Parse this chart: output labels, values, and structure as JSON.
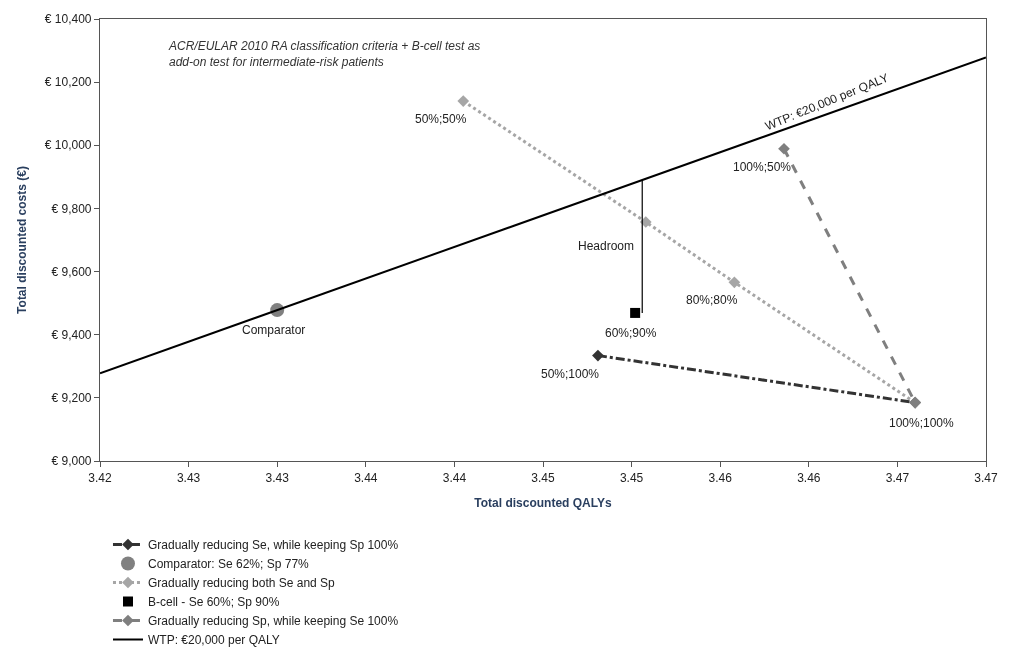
{
  "chart_data": {
    "type": "scatter",
    "xlabel": "Total discounted QALYs",
    "ylabel": "Total discounted costs (€)",
    "xlim": [
      3.42,
      3.47
    ],
    "xticks": [
      {
        "value": 3.42,
        "label": "3.42"
      },
      {
        "value": 3.425,
        "label": "3.43"
      },
      {
        "value": 3.43,
        "label": "3.43"
      },
      {
        "value": 3.435,
        "label": "3.44"
      },
      {
        "value": 3.44,
        "label": "3.44"
      },
      {
        "value": 3.445,
        "label": "3.45"
      },
      {
        "value": 3.45,
        "label": "3.45"
      },
      {
        "value": 3.455,
        "label": "3.46"
      },
      {
        "value": 3.46,
        "label": "3.46"
      },
      {
        "value": 3.465,
        "label": "3.47"
      },
      {
        "value": 3.47,
        "label": "3.47"
      }
    ],
    "ylim": [
      9000,
      10400
    ],
    "yticks": [
      {
        "value": 9000,
        "label": "€ 9,000"
      },
      {
        "value": 9200,
        "label": "€ 9,200"
      },
      {
        "value": 9400,
        "label": "€ 9,400"
      },
      {
        "value": 9600,
        "label": "€ 9,600"
      },
      {
        "value": 9800,
        "label": "€ 9,800"
      },
      {
        "value": 10000,
        "label": "€ 10,000"
      },
      {
        "value": 10200,
        "label": "€ 10,200"
      },
      {
        "value": 10400,
        "label": "€ 10,400"
      }
    ],
    "legend": "bottom",
    "series": [
      {
        "name": "Gradually reducing Se, while keeping Sp 100%",
        "type": "line",
        "color": "#333333",
        "line_style": "dashdot",
        "marker": "diamond",
        "x": [
          3.4481,
          3.466
        ],
        "values": [
          9334,
          9185
        ]
      },
      {
        "name": "Gradually reducing both Se and Sp",
        "type": "line",
        "color": "#a6a6a6",
        "line_style": "dotted",
        "marker": "diamond",
        "x": [
          3.4405,
          3.4508,
          3.4558,
          3.466
        ],
        "values": [
          10140,
          9757,
          9566,
          9185
        ]
      },
      {
        "name": "Gradually reducing Sp, while keeping Se 100%",
        "type": "line",
        "color": "#7f7f7f",
        "line_style": "dashed",
        "marker": "diamond",
        "x": [
          3.4586,
          3.466
        ],
        "values": [
          9989,
          9185
        ]
      },
      {
        "name": "Comparator: Se 62%; Sp 77%",
        "color": "#808080",
        "marker": "circle",
        "x": [
          3.43
        ],
        "values": [
          9478
        ]
      },
      {
        "name": "B-cell - Se 60%; Sp 90%",
        "color": "#000000",
        "marker": "square",
        "x": [
          3.4502
        ],
        "values": [
          9469
        ]
      },
      {
        "name": "WTP: €20,000 per QALY",
        "type": "line",
        "color": "#000000",
        "line_style": "solid",
        "marker": "none",
        "x": [
          3.42,
          3.47
        ],
        "values": [
          9278,
          10278
        ]
      }
    ],
    "annotations": [
      "ACR/EULAR 2010 RA classification criteria + B-cell test as add-on test for intermediate-risk patients",
      {
        "text": "50%;50%",
        "x": 3.4405,
        "y": 10140
      },
      {
        "text": "100%;50%",
        "x": 3.4586,
        "y": 9989
      },
      {
        "text": "80%;80%",
        "x": 3.4558,
        "y": 9566
      },
      {
        "text": "60%;90%",
        "x": 3.4502,
        "y": 9469
      },
      {
        "text": "50%;100%",
        "x": 3.4481,
        "y": 9334
      },
      {
        "text": "100%;100%",
        "x": 3.466,
        "y": 9185
      },
      {
        "text": "Comparator",
        "x": 3.43,
        "y": 9478
      },
      {
        "text": "WTP: €20,000 per QALY",
        "x": 3.461,
        "y": 10098
      },
      "Headroom"
    ]
  }
}
